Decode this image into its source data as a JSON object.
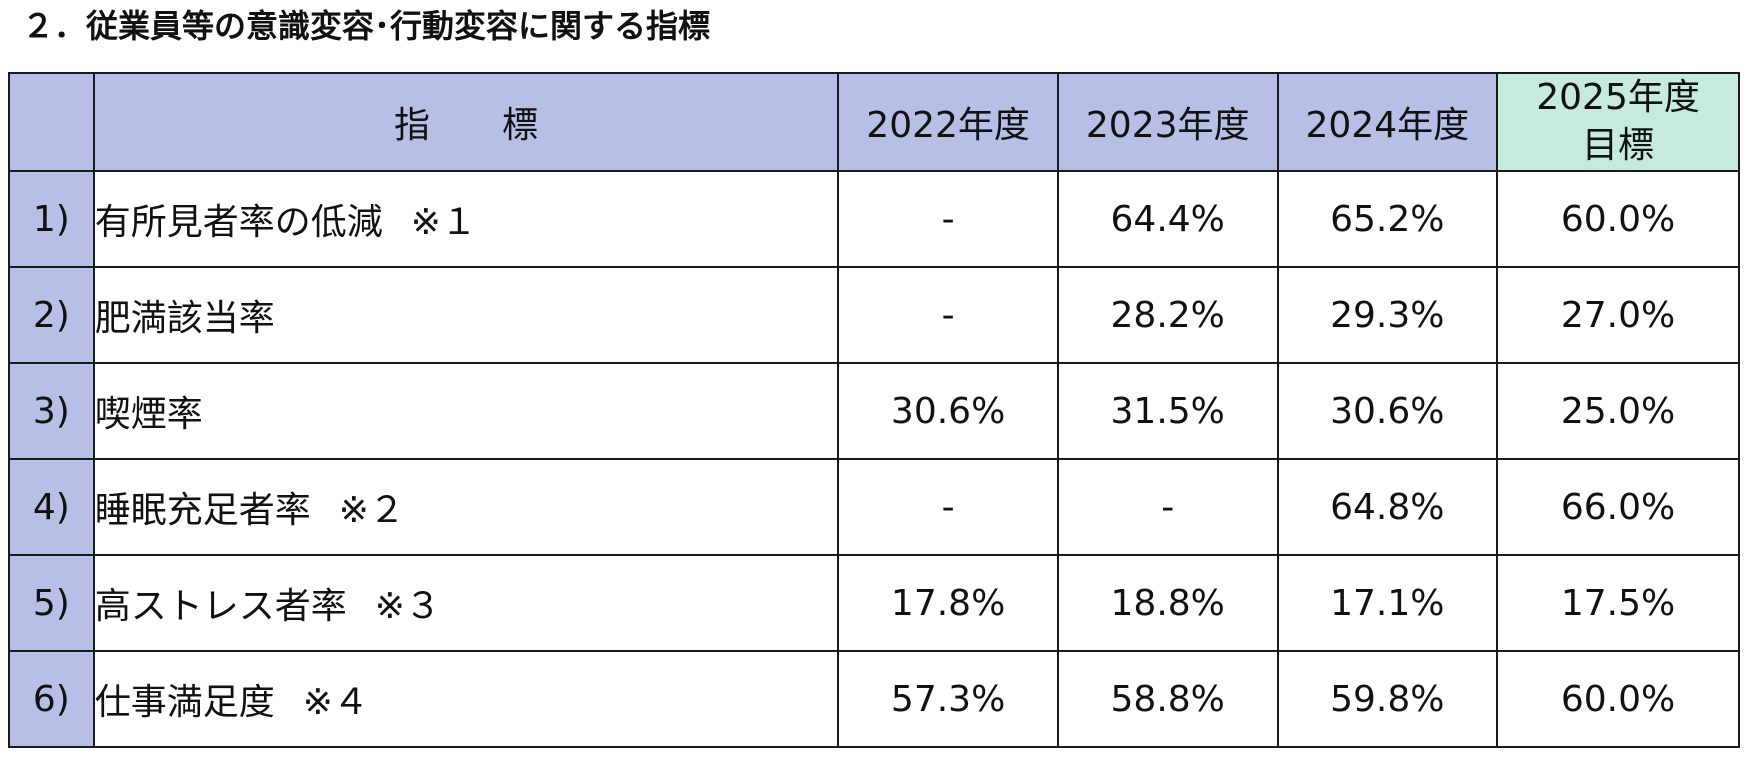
{
  "title": "２．従業員等の意識変容･行動変容に関する指標",
  "table": {
    "header": {
      "indicator_label_a": "指",
      "indicator_label_b": "標",
      "years": [
        "2022年度",
        "2023年度",
        "2024年度"
      ],
      "target_line1": "2025年度",
      "target_line2": "目標"
    },
    "rows": [
      {
        "num": "1)",
        "name": "有所見者率の低減",
        "note": "※１",
        "values": [
          "-",
          "64.4%",
          "65.2%",
          "60.0%"
        ]
      },
      {
        "num": "2)",
        "name": "肥満該当率",
        "note": "",
        "values": [
          "-",
          "28.2%",
          "29.3%",
          "27.0%"
        ]
      },
      {
        "num": "3)",
        "name": "喫煙率",
        "note": "",
        "values": [
          "30.6%",
          "31.5%",
          "30.6%",
          "25.0%"
        ]
      },
      {
        "num": "4)",
        "name": "睡眠充足者率",
        "note": "※２",
        "values": [
          "-",
          "-",
          "64.8%",
          "66.0%"
        ]
      },
      {
        "num": "5)",
        "name": "高ストレス者率",
        "note": "※３",
        "values": [
          "17.8%",
          "18.8%",
          "17.1%",
          "17.5%"
        ]
      },
      {
        "num": "6)",
        "name": "仕事満足度",
        "note": "※４",
        "values": [
          "57.3%",
          "58.8%",
          "59.8%",
          "60.0%"
        ]
      }
    ]
  }
}
